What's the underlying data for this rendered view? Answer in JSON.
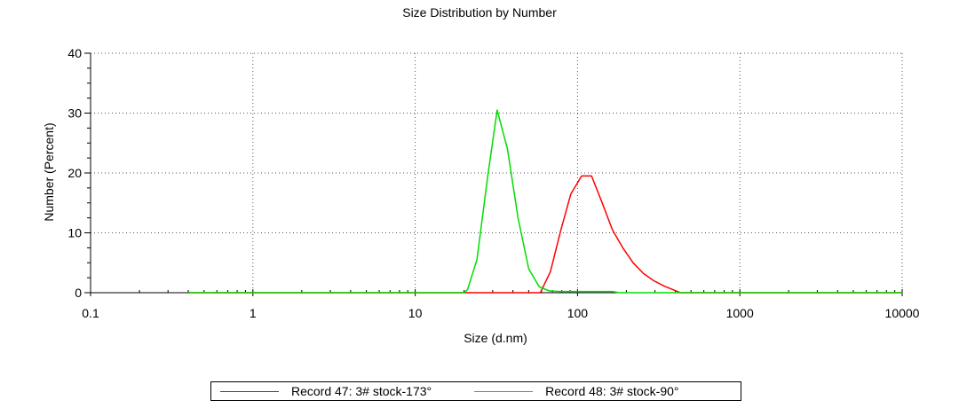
{
  "chart_data": {
    "type": "line",
    "title": "Size Distribution by Number",
    "xlabel": "Size (d.nm)",
    "ylabel": "Number (Percent)",
    "xscale": "log",
    "xlim": [
      0.1,
      10000
    ],
    "ylim": [
      0,
      40
    ],
    "x_ticks": [
      0.1,
      1,
      10,
      100,
      1000,
      10000
    ],
    "x_tick_labels": [
      "0.1",
      "1",
      "10",
      "100",
      "1000",
      "10000"
    ],
    "y_ticks": [
      0,
      10,
      20,
      30,
      40
    ],
    "y_tick_labels": [
      "0",
      "10",
      "20",
      "30",
      "40"
    ],
    "grid": true,
    "legend_position": "bottom",
    "series": [
      {
        "name": "Record 47: 3# stock-173°",
        "color": "#ff0000",
        "x": [
          0.4,
          20,
          45,
          59,
          68,
          79,
          91,
          106,
          122,
          142,
          164,
          190,
          220,
          255,
          295,
          342,
          396,
          430,
          10000
        ],
        "y": [
          0,
          0,
          0,
          0,
          3.5,
          10.5,
          16.5,
          19.5,
          19.5,
          15,
          10.5,
          7.5,
          5,
          3.2,
          2,
          1.1,
          0.4,
          0,
          0
        ]
      },
      {
        "name": "Record 48: 3# stock-90°",
        "color": "#00dd00",
        "x": [
          0.4,
          20,
          21,
          24,
          28,
          32,
          37,
          43,
          50,
          58,
          67,
          78,
          90,
          105,
          122,
          141,
          164,
          180,
          10000
        ],
        "y": [
          0,
          0,
          0.5,
          5.5,
          19.5,
          30.5,
          24,
          12.5,
          4,
          1,
          0.3,
          0.2,
          0.2,
          0.2,
          0.2,
          0.2,
          0.2,
          0,
          0
        ]
      }
    ]
  }
}
